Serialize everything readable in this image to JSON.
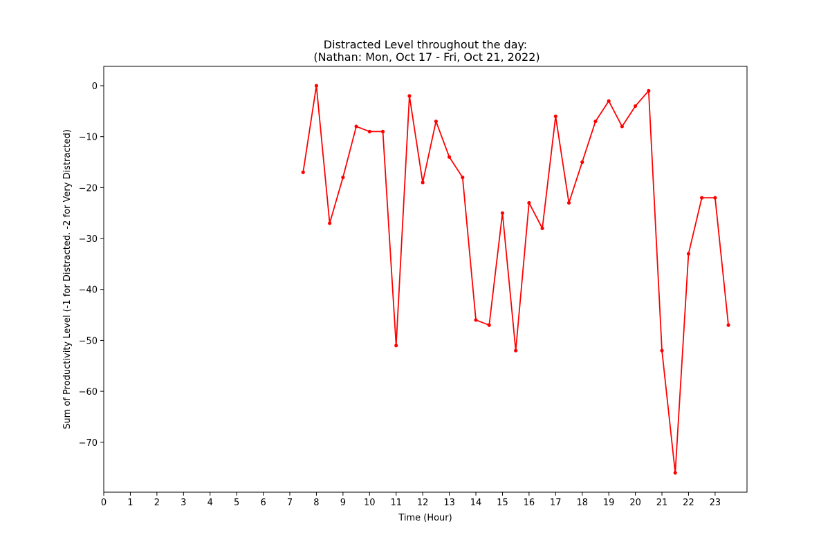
{
  "chart_data": {
    "type": "line",
    "title": "Distracted Level throughout the day:",
    "subtitle": "(Nathan: Mon, Oct 17 - Fri, Oct 21, 2022)",
    "xlabel": "Time (Hour)",
    "ylabel": "Sum of Productivity Level (-1 for Distracted. -2 for Very Distracted)",
    "xlim": [
      0,
      24.2
    ],
    "ylim": [
      -79.8,
      3.8
    ],
    "x_ticks": [
      0,
      1,
      2,
      3,
      4,
      5,
      6,
      7,
      8,
      9,
      10,
      11,
      12,
      13,
      14,
      15,
      16,
      17,
      18,
      19,
      20,
      21,
      22,
      23
    ],
    "y_ticks": [
      0,
      -10,
      -20,
      -30,
      -40,
      -50,
      -60,
      -70
    ],
    "grid": false,
    "line_color": "#ff0000",
    "series": [
      {
        "x": [
          7.5,
          8,
          8.5,
          9,
          9.5,
          10,
          10.5,
          11,
          11.5,
          12,
          12.5,
          13,
          13.5,
          14,
          14.5,
          15,
          15.5,
          16,
          16.5,
          17,
          17.5,
          18,
          18.5,
          19,
          19.5,
          20,
          20.5,
          21,
          21.5,
          22,
          22.5,
          23,
          23.5
        ],
        "values": [
          -17,
          0,
          -27,
          -18,
          -8,
          -9,
          -9,
          -51,
          -2,
          -19,
          -7,
          -14,
          -18,
          -46,
          -47,
          -25,
          -52,
          -23,
          -28,
          -6,
          -23,
          -15,
          -7,
          -3,
          -8,
          -4,
          -1,
          -52,
          -76,
          -33,
          -22,
          -22,
          -47
        ]
      }
    ]
  }
}
